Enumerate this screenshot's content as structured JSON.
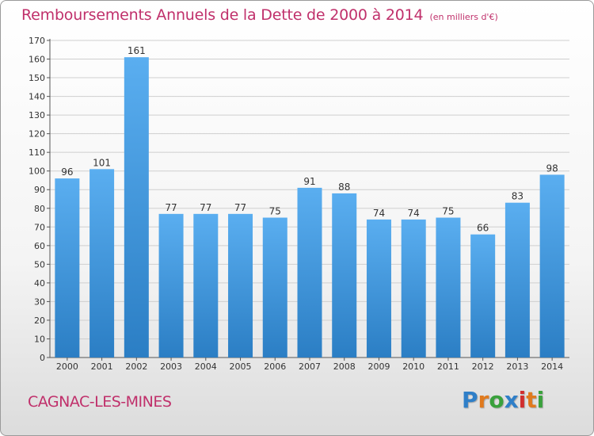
{
  "title": "Remboursements Annuels de la Dette de 2000 à 2014",
  "unit_note": "(en milliers d'€)",
  "town": "CAGNAC-LES-MINES",
  "logo": {
    "letters": [
      "P",
      "r",
      "o",
      "x",
      "i",
      "t",
      "i"
    ],
    "colors": [
      "#2f7fc8",
      "#e07a1e",
      "#3aa13c",
      "#2f7fc8",
      "#d12f2f",
      "#e07a1e",
      "#3aa13c"
    ]
  },
  "colors": {
    "bar_top": "#5aaef0",
    "bar_bottom": "#2b7ec4",
    "accent": "#c0306b"
  },
  "chart_data": {
    "type": "bar",
    "categories": [
      "2000",
      "2001",
      "2002",
      "2003",
      "2004",
      "2005",
      "2006",
      "2007",
      "2008",
      "2009",
      "2010",
      "2011",
      "2012",
      "2013",
      "2014"
    ],
    "values": [
      96,
      101,
      161,
      77,
      77,
      77,
      75,
      91,
      88,
      74,
      74,
      75,
      66,
      83,
      98
    ],
    "ylim": [
      0,
      170
    ],
    "yticks": [
      0,
      10,
      20,
      30,
      40,
      50,
      60,
      70,
      80,
      90,
      100,
      110,
      120,
      130,
      140,
      150,
      160,
      170
    ],
    "grid": true,
    "data_labels": true
  }
}
